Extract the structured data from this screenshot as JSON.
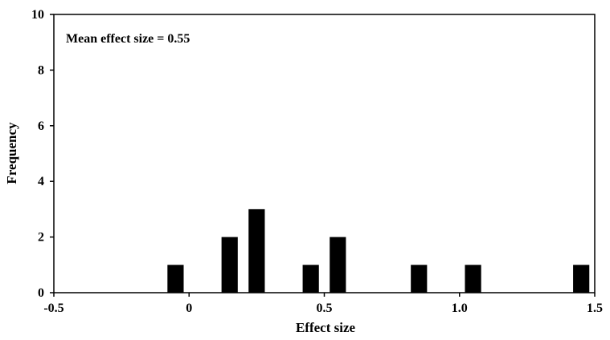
{
  "chart_data": {
    "type": "bar",
    "title": "",
    "xlabel": "Effect size",
    "ylabel": "Frequency",
    "annotation": "Mean effect size = 0.55",
    "xlim": [
      -0.5,
      1.5
    ],
    "ylim": [
      0,
      10
    ],
    "x_ticks": [
      -0.5,
      0,
      0.5,
      1.0,
      1.5
    ],
    "x_tick_labels": [
      "-0.5",
      "0",
      "0.5",
      "1.0",
      "1.5"
    ],
    "y_ticks": [
      0,
      2,
      4,
      6,
      8,
      10
    ],
    "y_tick_labels": [
      "0",
      "2",
      "4",
      "6",
      "8",
      "10"
    ],
    "bar_width": 0.06,
    "bars": [
      {
        "x": -0.05,
        "frequency": 1
      },
      {
        "x": 0.15,
        "frequency": 2
      },
      {
        "x": 0.25,
        "frequency": 3
      },
      {
        "x": 0.45,
        "frequency": 1
      },
      {
        "x": 0.55,
        "frequency": 2
      },
      {
        "x": 0.85,
        "frequency": 1
      },
      {
        "x": 1.05,
        "frequency": 1
      },
      {
        "x": 1.45,
        "frequency": 1
      }
    ],
    "grid": false,
    "bar_color": "#000000"
  }
}
